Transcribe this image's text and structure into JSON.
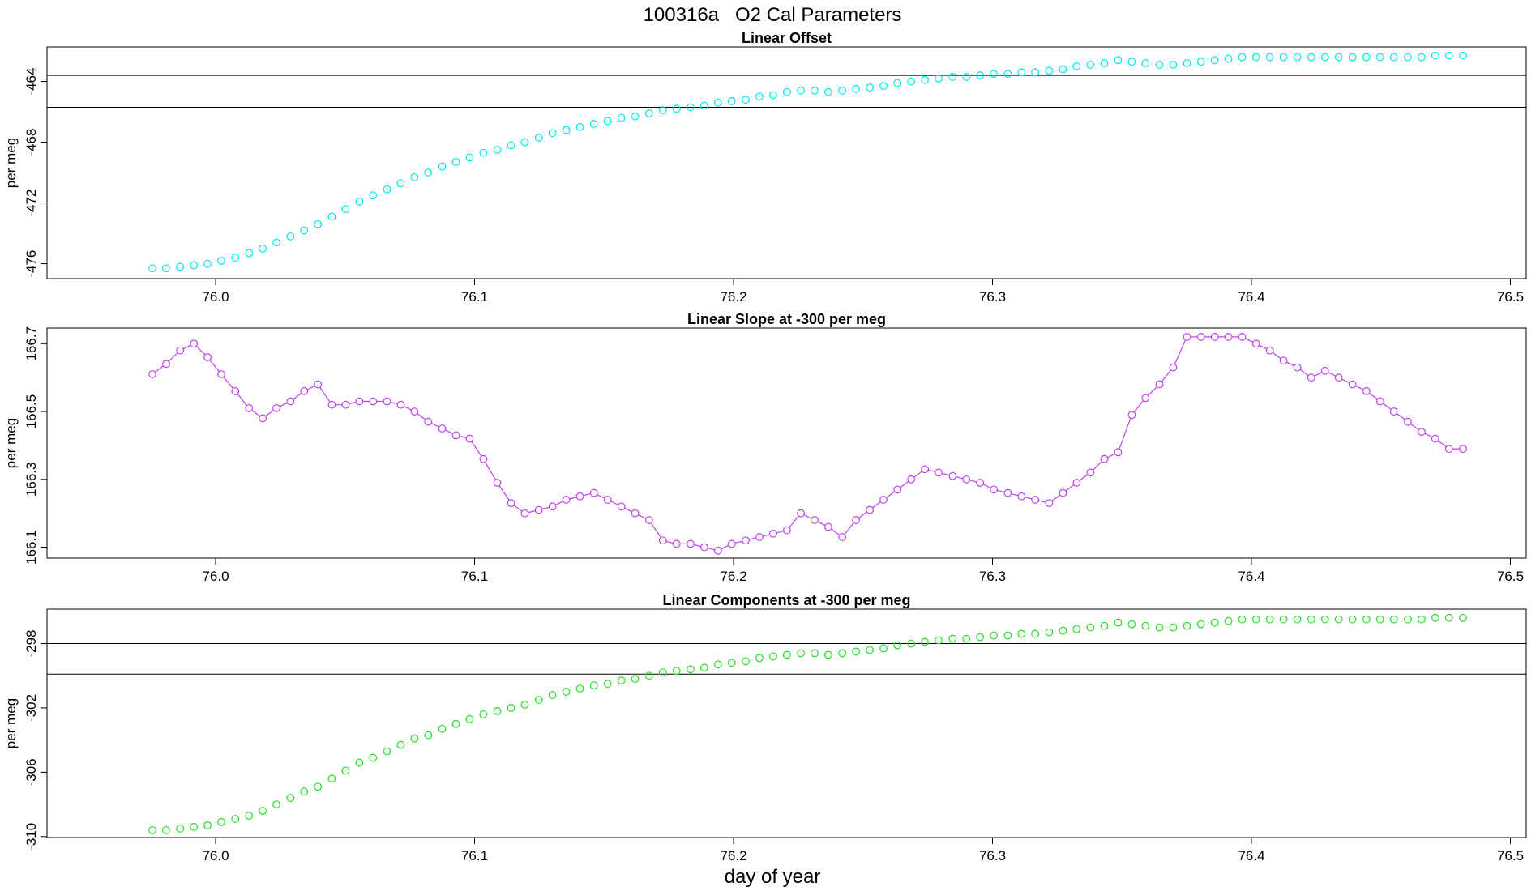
{
  "title": "100316a   O2 Cal Parameters",
  "chart_data": [
    {
      "type": "scatter",
      "title": "Linear Offset",
      "ylabel": "per meg",
      "color": "#00e8e8",
      "xlim": [
        75.9349,
        76.5061
      ],
      "ylim": [
        -476.98,
        -461.73
      ],
      "xticks": [
        {
          "value": 76,
          "label": "76.0"
        },
        76.1,
        76.2,
        76.3,
        76.4,
        76.5
      ],
      "yticks": [
        -476,
        -472,
        -468,
        -464
      ],
      "hlines": [
        -463.6,
        -465.7
      ],
      "x": [
        75.9756,
        75.9809,
        75.9863,
        75.9916,
        75.9969,
        76.0022,
        76.0076,
        76.0129,
        76.0182,
        76.0235,
        76.0289,
        76.0342,
        76.0395,
        76.0449,
        76.0502,
        76.0555,
        76.0608,
        76.0662,
        76.0715,
        76.0768,
        76.0821,
        76.0875,
        76.0928,
        76.0981,
        76.1034,
        76.1088,
        76.1141,
        76.1194,
        76.1248,
        76.1301,
        76.1354,
        76.1407,
        76.1461,
        76.1514,
        76.1567,
        76.162,
        76.1674,
        76.1727,
        76.178,
        76.1834,
        76.1887,
        76.194,
        76.1993,
        76.2047,
        76.21,
        76.2153,
        76.2206,
        76.226,
        76.2313,
        76.2366,
        76.242,
        76.2473,
        76.2526,
        76.2579,
        76.2633,
        76.2686,
        76.2739,
        76.2792,
        76.2846,
        76.2899,
        76.2952,
        76.3005,
        76.3059,
        76.3112,
        76.3165,
        76.3219,
        76.3272,
        76.3325,
        76.3378,
        76.3432,
        76.3485,
        76.3538,
        76.3591,
        76.3645,
        76.3698,
        76.3751,
        76.3805,
        76.3858,
        76.3911,
        76.3964,
        76.4018,
        76.4071,
        76.4124,
        76.4177,
        76.4231,
        76.4284,
        76.4337,
        76.439,
        76.4444,
        76.4497,
        76.455,
        76.4604,
        76.4657,
        76.471,
        76.4763,
        76.4817
      ],
      "values": [
        -476.3,
        -476.3,
        -476.2,
        -476.1,
        -476.0,
        -475.8,
        -475.6,
        -475.3,
        -475.0,
        -474.6,
        -474.2,
        -473.8,
        -473.4,
        -472.9,
        -472.4,
        -471.9,
        -471.5,
        -471.1,
        -470.7,
        -470.3,
        -470.0,
        -469.6,
        -469.3,
        -469.0,
        -468.7,
        -468.5,
        -468.2,
        -468.0,
        -467.7,
        -467.4,
        -467.2,
        -467.0,
        -466.8,
        -466.6,
        -466.4,
        -466.3,
        -466.1,
        -465.9,
        -465.8,
        -465.7,
        -465.6,
        -465.4,
        -465.3,
        -465.2,
        -465.0,
        -464.9,
        -464.7,
        -464.6,
        -464.6,
        -464.7,
        -464.6,
        -464.5,
        -464.4,
        -464.3,
        -464.1,
        -464.0,
        -463.9,
        -463.8,
        -463.7,
        -463.7,
        -463.6,
        -463.5,
        -463.5,
        -463.4,
        -463.4,
        -463.3,
        -463.2,
        -463.0,
        -462.9,
        -462.8,
        -462.6,
        -462.7,
        -462.8,
        -462.9,
        -462.9,
        -462.8,
        -462.7,
        -462.6,
        -462.5,
        -462.4,
        -462.4,
        -462.4,
        -462.4,
        -462.4,
        -462.4,
        -462.4,
        -462.4,
        -462.4,
        -462.4,
        -462.4,
        -462.4,
        -462.4,
        -462.4,
        -462.3,
        -462.3,
        -462.3
      ]
    },
    {
      "type": "line",
      "title": "Linear Slope at -300 per meg",
      "ylabel": "per meg",
      "color": "#c040f0",
      "xlim": [
        75.9349,
        76.5061
      ],
      "ylim": [
        166.068,
        166.746
      ],
      "xticks": [
        {
          "value": 76,
          "label": "76.0"
        },
        76.1,
        76.2,
        76.3,
        76.4,
        76.5
      ],
      "yticks": [
        166.1,
        166.3,
        166.5,
        166.7
      ],
      "x": [
        75.9756,
        75.9809,
        75.9863,
        75.9916,
        75.9969,
        76.0022,
        76.0076,
        76.0129,
        76.0182,
        76.0235,
        76.0289,
        76.0342,
        76.0395,
        76.0449,
        76.0502,
        76.0555,
        76.0608,
        76.0662,
        76.0715,
        76.0768,
        76.0821,
        76.0875,
        76.0928,
        76.0981,
        76.1034,
        76.1088,
        76.1141,
        76.1194,
        76.1248,
        76.1301,
        76.1354,
        76.1407,
        76.1461,
        76.1514,
        76.1567,
        76.162,
        76.1674,
        76.1727,
        76.178,
        76.1834,
        76.1887,
        76.194,
        76.1993,
        76.2047,
        76.21,
        76.2153,
        76.2206,
        76.226,
        76.2313,
        76.2366,
        76.242,
        76.2473,
        76.2526,
        76.2579,
        76.2633,
        76.2686,
        76.2739,
        76.2792,
        76.2846,
        76.2899,
        76.2952,
        76.3005,
        76.3059,
        76.3112,
        76.3165,
        76.3219,
        76.3272,
        76.3325,
        76.3378,
        76.3432,
        76.3485,
        76.3538,
        76.3591,
        76.3645,
        76.3698,
        76.3751,
        76.3805,
        76.3858,
        76.3911,
        76.3964,
        76.4018,
        76.4071,
        76.4124,
        76.4177,
        76.4231,
        76.4284,
        76.4337,
        76.439,
        76.4444,
        76.4497,
        76.455,
        76.4604,
        76.4657,
        76.471,
        76.4763,
        76.4817
      ],
      "values": [
        166.61,
        166.64,
        166.68,
        166.7,
        166.66,
        166.61,
        166.56,
        166.51,
        166.48,
        166.51,
        166.53,
        166.56,
        166.58,
        166.52,
        166.52,
        166.53,
        166.53,
        166.53,
        166.52,
        166.5,
        166.47,
        166.45,
        166.43,
        166.42,
        166.36,
        166.29,
        166.23,
        166.2,
        166.21,
        166.22,
        166.24,
        166.25,
        166.26,
        166.24,
        166.22,
        166.2,
        166.18,
        166.12,
        166.11,
        166.11,
        166.1,
        166.09,
        166.11,
        166.12,
        166.13,
        166.14,
        166.15,
        166.2,
        166.18,
        166.16,
        166.13,
        166.18,
        166.21,
        166.24,
        166.27,
        166.3,
        166.33,
        166.32,
        166.31,
        166.3,
        166.29,
        166.27,
        166.26,
        166.25,
        166.24,
        166.23,
        166.26,
        166.29,
        166.32,
        166.36,
        166.38,
        166.49,
        166.54,
        166.58,
        166.63,
        166.72,
        166.72,
        166.72,
        166.72,
        166.72,
        166.7,
        166.68,
        166.65,
        166.63,
        166.6,
        166.62,
        166.6,
        166.58,
        166.56,
        166.53,
        166.5,
        166.47,
        166.44,
        166.42,
        166.39,
        166.39
      ]
    },
    {
      "type": "scatter",
      "title": "Linear Components at -300 per meg",
      "ylabel": "per meg",
      "xlabel": "day of year",
      "color": "#22e022",
      "xlim": [
        75.9349,
        76.5061
      ],
      "ylim": [
        -310.06,
        -295.86
      ],
      "xticks": [
        {
          "value": 76,
          "label": "76.0"
        },
        76.1,
        76.2,
        76.3,
        76.4,
        76.5
      ],
      "yticks": [
        -310,
        -306,
        -302,
        -298
      ],
      "hlines": [
        -298.0,
        -299.9
      ],
      "x": [
        75.9756,
        75.9809,
        75.9863,
        75.9916,
        75.9969,
        76.0022,
        76.0076,
        76.0129,
        76.0182,
        76.0235,
        76.0289,
        76.0342,
        76.0395,
        76.0449,
        76.0502,
        76.0555,
        76.0608,
        76.0662,
        76.0715,
        76.0768,
        76.0821,
        76.0875,
        76.0928,
        76.0981,
        76.1034,
        76.1088,
        76.1141,
        76.1194,
        76.1248,
        76.1301,
        76.1354,
        76.1407,
        76.1461,
        76.1514,
        76.1567,
        76.162,
        76.1674,
        76.1727,
        76.178,
        76.1834,
        76.1887,
        76.194,
        76.1993,
        76.2047,
        76.21,
        76.2153,
        76.2206,
        76.226,
        76.2313,
        76.2366,
        76.242,
        76.2473,
        76.2526,
        76.2579,
        76.2633,
        76.2686,
        76.2739,
        76.2792,
        76.2846,
        76.2899,
        76.2952,
        76.3005,
        76.3059,
        76.3112,
        76.3165,
        76.3219,
        76.3272,
        76.3325,
        76.3378,
        76.3432,
        76.3485,
        76.3538,
        76.3591,
        76.3645,
        76.3698,
        76.3751,
        76.3805,
        76.3858,
        76.3911,
        76.3964,
        76.4018,
        76.4071,
        76.4124,
        76.4177,
        76.4231,
        76.4284,
        76.4337,
        76.439,
        76.4444,
        76.4497,
        76.455,
        76.4604,
        76.4657,
        76.471,
        76.4763,
        76.4817
      ],
      "values": [
        -309.6,
        -309.6,
        -309.5,
        -309.4,
        -309.3,
        -309.1,
        -308.9,
        -308.7,
        -308.4,
        -308.0,
        -307.6,
        -307.2,
        -306.9,
        -306.4,
        -305.9,
        -305.4,
        -305.1,
        -304.7,
        -304.3,
        -303.9,
        -303.7,
        -303.3,
        -303.0,
        -302.7,
        -302.4,
        -302.2,
        -302.0,
        -301.8,
        -301.5,
        -301.2,
        -301.0,
        -300.8,
        -300.6,
        -300.5,
        -300.3,
        -300.2,
        -300.0,
        -299.8,
        -299.7,
        -299.6,
        -299.5,
        -299.3,
        -299.2,
        -299.1,
        -298.9,
        -298.8,
        -298.7,
        -298.6,
        -298.6,
        -298.7,
        -298.6,
        -298.5,
        -298.4,
        -298.3,
        -298.1,
        -298.0,
        -297.9,
        -297.8,
        -297.7,
        -297.7,
        -297.6,
        -297.5,
        -297.5,
        -297.4,
        -297.4,
        -297.3,
        -297.2,
        -297.1,
        -297.0,
        -296.9,
        -296.7,
        -296.8,
        -296.9,
        -297.0,
        -297.0,
        -296.9,
        -296.8,
        -296.7,
        -296.6,
        -296.5,
        -296.5,
        -296.5,
        -296.5,
        -296.5,
        -296.5,
        -296.5,
        -296.5,
        -296.5,
        -296.5,
        -296.5,
        -296.5,
        -296.5,
        -296.5,
        -296.4,
        -296.4,
        -296.4
      ]
    }
  ]
}
